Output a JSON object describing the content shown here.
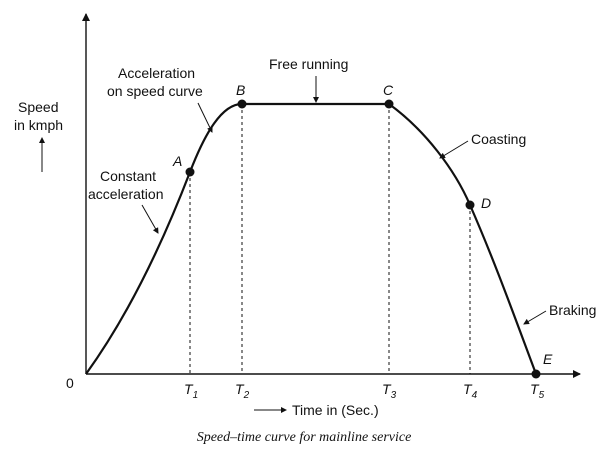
{
  "y_axis_label": [
    "Speed",
    "in kmph"
  ],
  "origin_label": "0",
  "x_axis_label": "Time in (Sec.)",
  "caption": "Speed–time curve for mainline service",
  "points": {
    "A": "A",
    "B": "B",
    "C": "C",
    "D": "D",
    "E": "E"
  },
  "ticks": [
    {
      "main": "T",
      "sub": "1"
    },
    {
      "main": "T",
      "sub": "2"
    },
    {
      "main": "T",
      "sub": "3"
    },
    {
      "main": "T",
      "sub": "4"
    },
    {
      "main": "T",
      "sub": "5"
    }
  ],
  "annotations": {
    "constant_acceleration": [
      "Constant",
      "acceleration"
    ],
    "acceleration_on_speed_curve": [
      "Acceleration",
      "on speed curve"
    ],
    "free_running": "Free running",
    "coasting": "Coasting",
    "braking": "Braking"
  }
}
